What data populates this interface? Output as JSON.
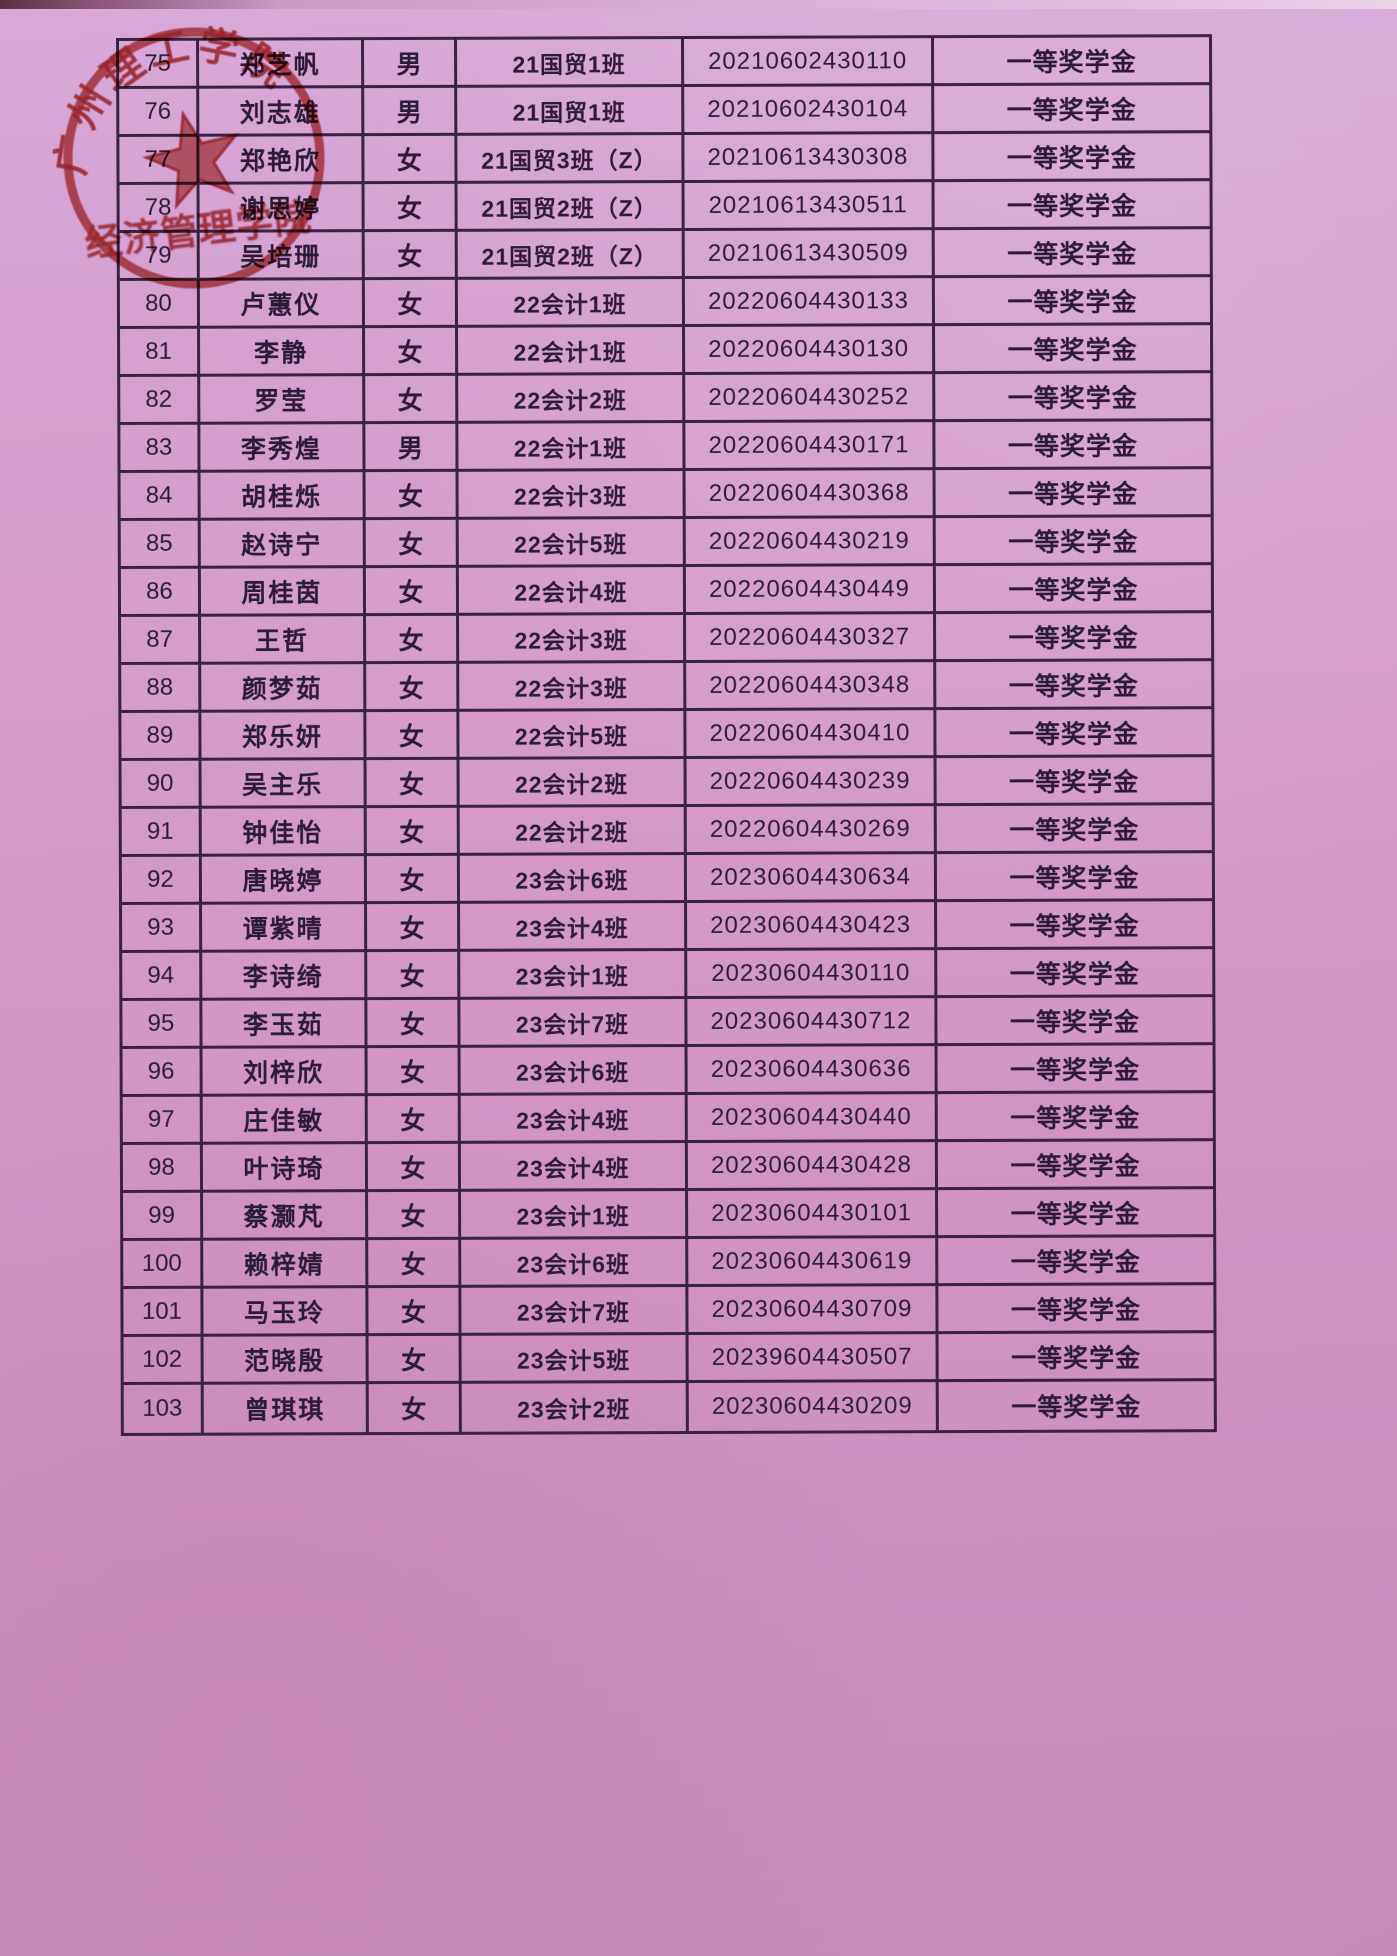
{
  "stamp": {
    "arc_text": "广州理工学院",
    "line_text": "经济管理学院"
  },
  "table": {
    "rows": [
      {
        "no": "75",
        "name": "郑芝帆",
        "gender": "男",
        "class": "21国贸1班",
        "student_id": "20210602430110",
        "award": "一等奖学金"
      },
      {
        "no": "76",
        "name": "刘志雄",
        "gender": "男",
        "class": "21国贸1班",
        "student_id": "20210602430104",
        "award": "一等奖学金"
      },
      {
        "no": "77",
        "name": "郑艳欣",
        "gender": "女",
        "class": "21国贸3班（Z）",
        "student_id": "20210613430308",
        "award": "一等奖学金"
      },
      {
        "no": "78",
        "name": "谢思婷",
        "gender": "女",
        "class": "21国贸2班（Z）",
        "student_id": "20210613430511",
        "award": "一等奖学金"
      },
      {
        "no": "79",
        "name": "吴培珊",
        "gender": "女",
        "class": "21国贸2班（Z）",
        "student_id": "20210613430509",
        "award": "一等奖学金"
      },
      {
        "no": "80",
        "name": "卢蕙仪",
        "gender": "女",
        "class": "22会计1班",
        "student_id": "20220604430133",
        "award": "一等奖学金"
      },
      {
        "no": "81",
        "name": "李静",
        "gender": "女",
        "class": "22会计1班",
        "student_id": "20220604430130",
        "award": "一等奖学金"
      },
      {
        "no": "82",
        "name": "罗莹",
        "gender": "女",
        "class": "22会计2班",
        "student_id": "20220604430252",
        "award": "一等奖学金"
      },
      {
        "no": "83",
        "name": "李秀煌",
        "gender": "男",
        "class": "22会计1班",
        "student_id": "20220604430171",
        "award": "一等奖学金"
      },
      {
        "no": "84",
        "name": "胡桂烁",
        "gender": "女",
        "class": "22会计3班",
        "student_id": "20220604430368",
        "award": "一等奖学金"
      },
      {
        "no": "85",
        "name": "赵诗宁",
        "gender": "女",
        "class": "22会计5班",
        "student_id": "20220604430219",
        "award": "一等奖学金"
      },
      {
        "no": "86",
        "name": "周桂茵",
        "gender": "女",
        "class": "22会计4班",
        "student_id": "20220604430449",
        "award": "一等奖学金"
      },
      {
        "no": "87",
        "name": "王哲",
        "gender": "女",
        "class": "22会计3班",
        "student_id": "20220604430327",
        "award": "一等奖学金"
      },
      {
        "no": "88",
        "name": "颜梦茹",
        "gender": "女",
        "class": "22会计3班",
        "student_id": "20220604430348",
        "award": "一等奖学金"
      },
      {
        "no": "89",
        "name": "郑乐妍",
        "gender": "女",
        "class": "22会计5班",
        "student_id": "20220604430410",
        "award": "一等奖学金"
      },
      {
        "no": "90",
        "name": "吴主乐",
        "gender": "女",
        "class": "22会计2班",
        "student_id": "20220604430239",
        "award": "一等奖学金"
      },
      {
        "no": "91",
        "name": "钟佳怡",
        "gender": "女",
        "class": "22会计2班",
        "student_id": "20220604430269",
        "award": "一等奖学金"
      },
      {
        "no": "92",
        "name": "唐晓婷",
        "gender": "女",
        "class": "23会计6班",
        "student_id": "20230604430634",
        "award": "一等奖学金"
      },
      {
        "no": "93",
        "name": "谭紫晴",
        "gender": "女",
        "class": "23会计4班",
        "student_id": "20230604430423",
        "award": "一等奖学金"
      },
      {
        "no": "94",
        "name": "李诗绮",
        "gender": "女",
        "class": "23会计1班",
        "student_id": "20230604430110",
        "award": "一等奖学金"
      },
      {
        "no": "95",
        "name": "李玉茹",
        "gender": "女",
        "class": "23会计7班",
        "student_id": "20230604430712",
        "award": "一等奖学金"
      },
      {
        "no": "96",
        "name": "刘梓欣",
        "gender": "女",
        "class": "23会计6班",
        "student_id": "20230604430636",
        "award": "一等奖学金"
      },
      {
        "no": "97",
        "name": "庄佳敏",
        "gender": "女",
        "class": "23会计4班",
        "student_id": "20230604430440",
        "award": "一等奖学金"
      },
      {
        "no": "98",
        "name": "叶诗琦",
        "gender": "女",
        "class": "23会计4班",
        "student_id": "20230604430428",
        "award": "一等奖学金"
      },
      {
        "no": "99",
        "name": "蔡灏芃",
        "gender": "女",
        "class": "23会计1班",
        "student_id": "20230604430101",
        "award": "一等奖学金"
      },
      {
        "no": "100",
        "name": "赖梓婧",
        "gender": "女",
        "class": "23会计6班",
        "student_id": "20230604430619",
        "award": "一等奖学金"
      },
      {
        "no": "101",
        "name": "马玉玲",
        "gender": "女",
        "class": "23会计7班",
        "student_id": "20230604430709",
        "award": "一等奖学金"
      },
      {
        "no": "102",
        "name": "范晓殷",
        "gender": "女",
        "class": "23会计5班",
        "student_id": "20239604430507",
        "award": "一等奖学金"
      },
      {
        "no": "103",
        "name": "曾琪琪",
        "gender": "女",
        "class": "23会计2班",
        "student_id": "20230604430209",
        "award": "一等奖学金"
      }
    ]
  }
}
